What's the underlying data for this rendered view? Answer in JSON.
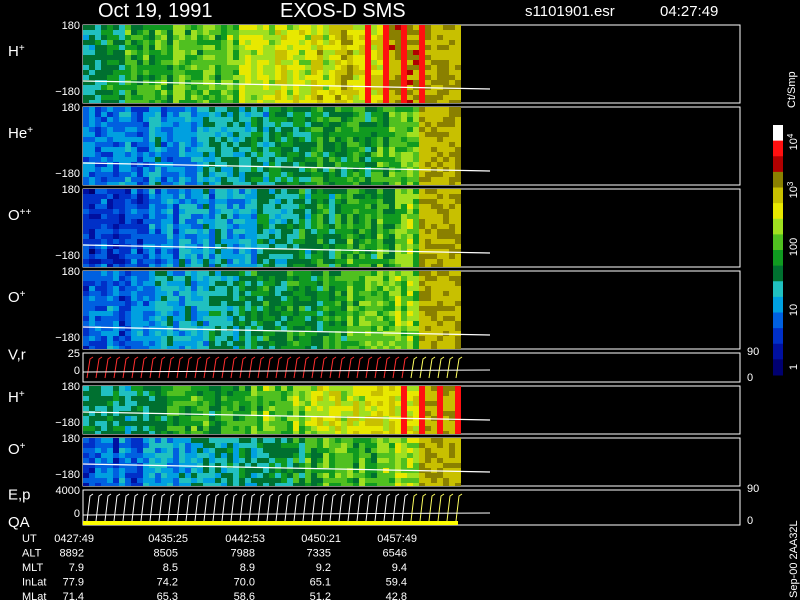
{
  "header": {
    "date": "Oct 19, 1991",
    "instrument": "EXOS-D SMS",
    "file": "s1101901.esr",
    "time": "04:27:49"
  },
  "panels": [
    {
      "ion": "H",
      "charge": "+",
      "top": "180",
      "bottom": "−180"
    },
    {
      "ion": "He",
      "charge": "+",
      "top": "180",
      "bottom": "−180"
    },
    {
      "ion": "O",
      "charge": "++",
      "top": "180",
      "bottom": "−180"
    },
    {
      "ion": "O",
      "charge": "+",
      "top": "180",
      "bottom": "−180"
    },
    {
      "ion": "V,r",
      "top": "25",
      "bottom": "0",
      "right_top": "90",
      "right_bottom": "0"
    },
    {
      "ion": "H",
      "charge": "+",
      "top": "180",
      "bottom": "−180"
    },
    {
      "ion": "O",
      "charge": "+",
      "top": "180",
      "bottom": "−180"
    },
    {
      "ion": "E,p",
      "ion2": "QA",
      "top": "4000",
      "bottom": "0",
      "right_top": "90",
      "right_bottom": "0"
    }
  ],
  "colorbar": {
    "unit": "Ct/Smp",
    "ticks": [
      {
        "base": "10",
        "exp": "4"
      },
      {
        "base": "10",
        "exp": "3"
      },
      "100",
      "10",
      "1"
    ]
  },
  "footer": {
    "rows": [
      {
        "label": "UT",
        "values": [
          "0427:49",
          "0435:25",
          "0442:53",
          "0450:21",
          "0457:49"
        ]
      },
      {
        "label": "ALT",
        "values": [
          "8892",
          "8505",
          "7988",
          "7335",
          "6546"
        ]
      },
      {
        "label": "MLT",
        "values": [
          "7.9",
          "8.5",
          "8.9",
          "9.2",
          "9.4"
        ]
      },
      {
        "label": "InLat",
        "values": [
          "77.9",
          "74.2",
          "70.0",
          "65.1",
          "59.4"
        ]
      },
      {
        "label": "MLat",
        "values": [
          "71.4",
          "65.3",
          "58.6",
          "51.2",
          "42.8"
        ]
      }
    ],
    "stamp": "Sep-00 2AA32L"
  }
}
